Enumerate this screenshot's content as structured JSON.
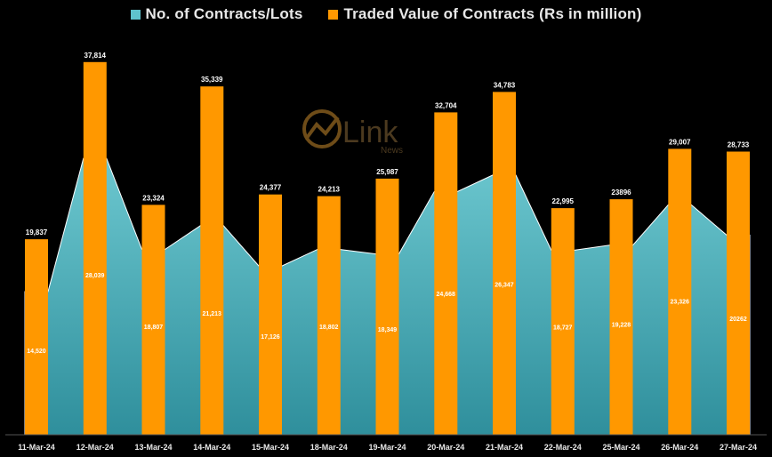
{
  "legend": {
    "series_a": "No. of Contracts/Lots",
    "series_b": "Traded Value of Contracts (Rs in million)"
  },
  "watermark": {
    "brand": "Link",
    "sub": "News"
  },
  "colors": {
    "background": "#000000",
    "area_top": "#6cc7cf",
    "area_bottom": "#2f8f9c",
    "bar": "#ff9800",
    "text": "#e8e8e8"
  },
  "chart_data": {
    "type": "bar",
    "categories": [
      "11-Mar-24",
      "12-Mar-24",
      "13-Mar-24",
      "14-Mar-24",
      "15-Mar-24",
      "18-Mar-24",
      "19-Mar-24",
      "20-Mar-24",
      "21-Mar-24",
      "22-Mar-24",
      "25-Mar-24",
      "26-Mar-24",
      "27-Mar-24"
    ],
    "series": [
      {
        "name": "No. of Contracts/Lots",
        "render": "area",
        "values": [
          14520,
          28039,
          18807,
          21213,
          17126,
          18802,
          18349,
          24668,
          26347,
          18727,
          19228,
          23326,
          20262
        ],
        "labels": [
          "14,520",
          "28,039",
          "18,807",
          "21,213",
          "17,126",
          "18,802",
          "18,349",
          "24,668",
          "26,347",
          "18,727",
          "19,228",
          "23,326",
          "20262"
        ]
      },
      {
        "name": "Traded Value of Contracts (Rs in million)",
        "render": "bar",
        "values": [
          19837,
          37814,
          23324,
          35339,
          24377,
          24213,
          25987,
          32704,
          34783,
          22995,
          23896,
          29007,
          28733
        ],
        "labels": [
          "19,837",
          "37,814",
          "23,324",
          "35,339",
          "24,377",
          "24,213",
          "25,987",
          "32,704",
          "34,783",
          "22,995",
          "23896",
          "29,007",
          "28,733"
        ]
      }
    ],
    "ylim": [
      0,
      40500
    ],
    "grid": false,
    "legend_position": "top-center"
  }
}
